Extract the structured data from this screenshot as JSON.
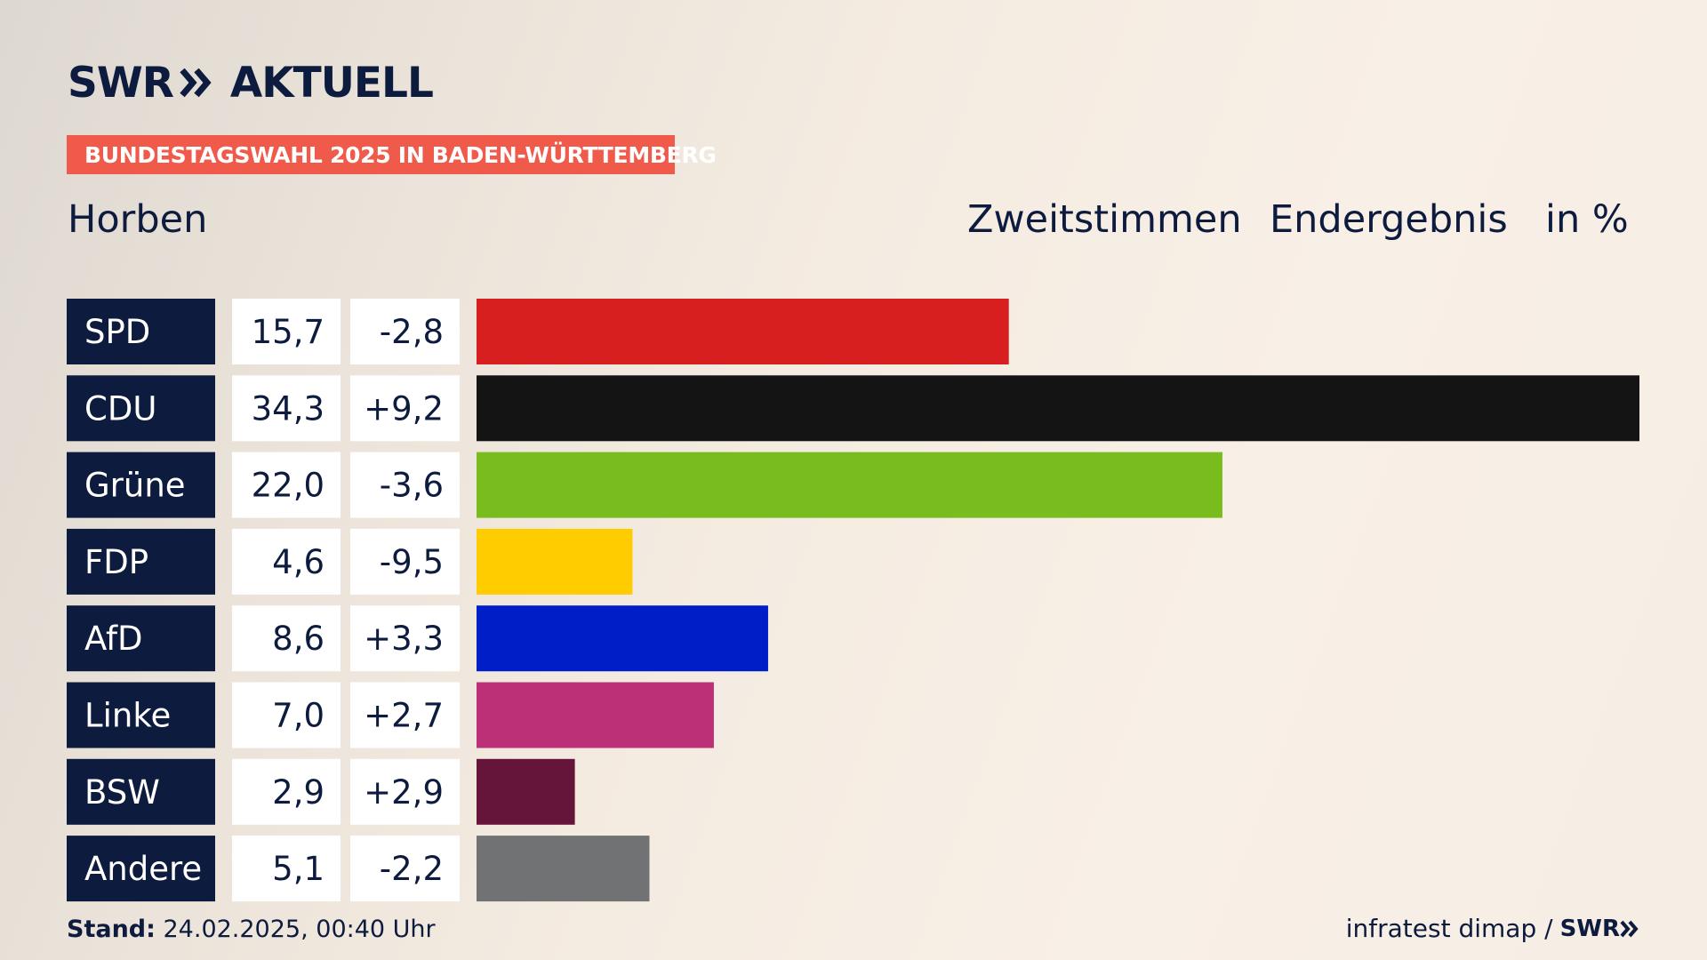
{
  "header": {
    "logo_left": "SWR",
    "logo_right": "AKTUELL",
    "banner": "BUNDESTAGSWAHL 2025 IN BADEN-WÜRTTEMBERG",
    "place": "Horben",
    "vote_type": "Zweitstimmen",
    "result_type": "Endergebnis",
    "unit": "in %"
  },
  "footer": {
    "stand_label": "Stand:",
    "stand_value": " 24.02.2025, 00:40 Uhr",
    "source": "infratest dimap /",
    "source_logo": "SWR"
  },
  "colors": {
    "label_bg": "#0d1b3e",
    "value_bg": "#ffffff",
    "banner": "#f05a4a"
  },
  "chart_data": {
    "type": "bar",
    "orientation": "horizontal",
    "xlim": [
      0,
      34.3
    ],
    "categories": [
      "SPD",
      "CDU",
      "Grüne",
      "FDP",
      "AfD",
      "Linke",
      "BSW",
      "Andere"
    ],
    "values": [
      15.7,
      34.3,
      22.0,
      4.6,
      8.6,
      7.0,
      2.9,
      5.1
    ],
    "value_labels": [
      "15,7",
      "34,3",
      "22,0",
      "4,6",
      "8,6",
      "7,0",
      "2,9",
      "5,1"
    ],
    "changes": [
      "-2,8",
      "+9,2",
      "-3,6",
      "-9,5",
      "+3,3",
      "+2,7",
      "+2,9",
      "-2,2"
    ],
    "bar_colors": [
      "#d71f20",
      "#141414",
      "#78bc1e",
      "#ffcc00",
      "#001ec8",
      "#bb3077",
      "#66153a",
      "#717273"
    ]
  }
}
